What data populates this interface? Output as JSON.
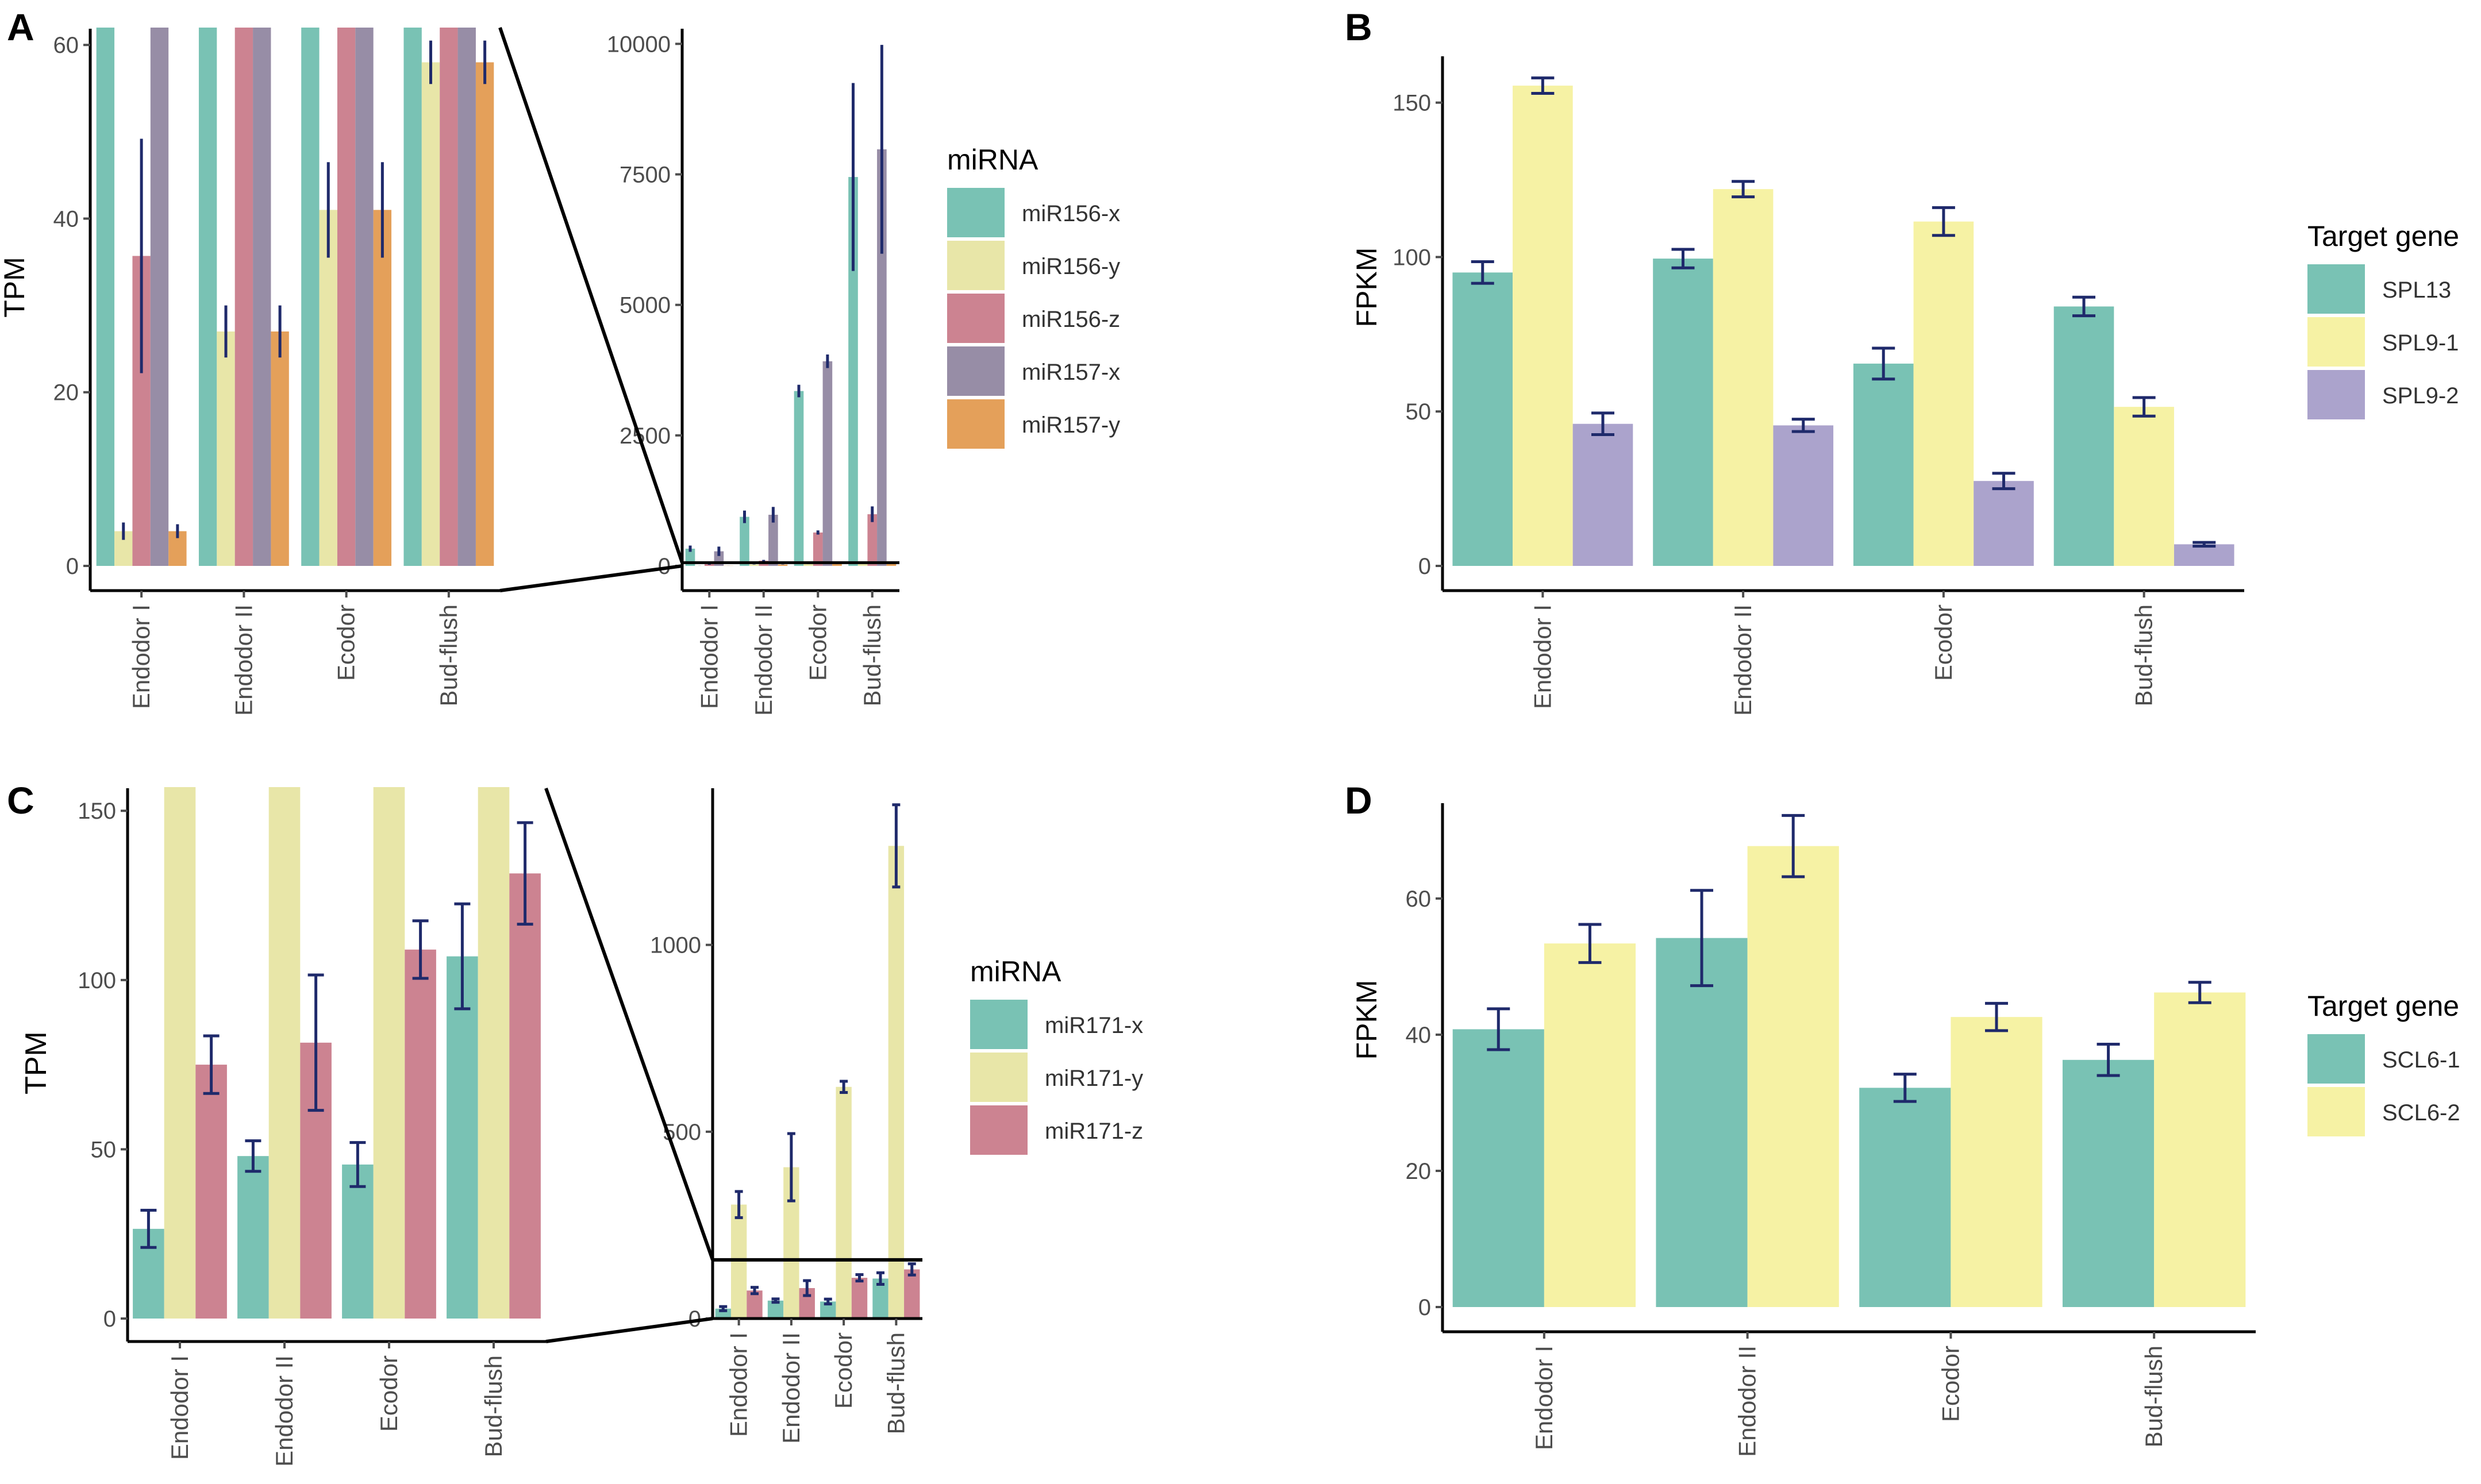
{
  "figure": {
    "panel_labels": [
      "A",
      "B",
      "C",
      "D"
    ],
    "categories": [
      "Endodor I",
      "Endodor II",
      "Ecodor",
      "Bud-flush"
    ]
  },
  "chart_data": [
    {
      "id": "A",
      "type": "bar",
      "title": "",
      "xlabel": "",
      "ylabel": "TPM",
      "legend_title": "miRNA",
      "legend_position": "right",
      "grid": false,
      "categories": [
        "Endodor I",
        "Endodor II",
        "Ecodor",
        "Bud-flush"
      ],
      "series": [
        {
          "name": "miR156-x",
          "color": "#79C2B4",
          "values": [
            330,
            940,
            3350,
            7450
          ],
          "errors": [
            60,
            120,
            120,
            1800
          ]
        },
        {
          "name": "miR156-y",
          "color": "#E8E6A8",
          "values": [
            4,
            27,
            41,
            58
          ],
          "errors": [
            1,
            3,
            5.5,
            2.5
          ]
        },
        {
          "name": "miR156-z",
          "color": "#CC8391",
          "values": [
            35.7,
            100,
            640,
            990
          ],
          "errors": [
            13.5,
            15,
            40,
            150
          ]
        },
        {
          "name": "miR157-x",
          "color": "#978DA6",
          "values": [
            280,
            980,
            3920,
            7980
          ],
          "errors": [
            90,
            150,
            130,
            2000
          ]
        },
        {
          "name": "miR157-y",
          "color": "#E4A05A",
          "values": [
            4,
            27,
            41,
            58
          ],
          "errors": [
            0.8,
            3,
            5.5,
            2.5
          ]
        }
      ],
      "zoom_ylim": [
        0,
        62
      ],
      "zoom_yticks": [
        0,
        20,
        40,
        60
      ],
      "full_ylim": [
        0,
        10400
      ],
      "full_yticks": [
        0,
        2500,
        5000,
        7500,
        10000
      ],
      "highlight_upper": 62
    },
    {
      "id": "B",
      "type": "bar",
      "title": "",
      "xlabel": "",
      "ylabel": "FPKM",
      "legend_title": "Target gene",
      "legend_position": "right",
      "grid": false,
      "categories": [
        "Endodor I",
        "Endodor II",
        "Ecodor",
        "Bud-flush"
      ],
      "series": [
        {
          "name": "SPL13",
          "color": "#79C2B4",
          "values": [
            95,
            99.5,
            65.5,
            84
          ],
          "errors": [
            3.5,
            3,
            5,
            3
          ]
        },
        {
          "name": "SPL9-1",
          "color": "#F6F2A4",
          "values": [
            155.5,
            122,
            111.5,
            51.5
          ],
          "errors": [
            2.5,
            2.5,
            4.5,
            3
          ]
        },
        {
          "name": "SPL9-2",
          "color": "#ABA3CC",
          "values": [
            46,
            45.5,
            27.5,
            7
          ],
          "errors": [
            3.5,
            2,
            2.5,
            0.6
          ]
        }
      ],
      "ylim": [
        0,
        165
      ],
      "yticks": [
        0,
        50,
        100,
        150
      ]
    },
    {
      "id": "C",
      "type": "bar",
      "title": "",
      "xlabel": "",
      "ylabel": "TPM",
      "legend_title": "miRNA",
      "legend_position": "right",
      "grid": false,
      "categories": [
        "Endodor I",
        "Endodor II",
        "Ecodor",
        "Bud-flush"
      ],
      "series": [
        {
          "name": "miR171-x",
          "color": "#79C2B4",
          "values": [
            26.5,
            48,
            45.5,
            107
          ],
          "errors": [
            5.5,
            4.5,
            6.5,
            15.5
          ]
        },
        {
          "name": "miR171-y",
          "color": "#E8E6A8",
          "values": [
            305,
            405,
            620,
            1265
          ],
          "errors": [
            35,
            90,
            15,
            110
          ]
        },
        {
          "name": "miR171-z",
          "color": "#CC8391",
          "values": [
            75,
            81.5,
            109,
            131.5
          ],
          "errors": [
            8.5,
            20,
            8.5,
            15
          ]
        }
      ],
      "zoom_ylim": [
        0,
        157
      ],
      "zoom_yticks": [
        0,
        50,
        100,
        150
      ],
      "full_ylim": [
        0,
        1410
      ],
      "full_yticks": [
        0,
        500,
        1000
      ],
      "highlight_upper": 157
    },
    {
      "id": "D",
      "type": "bar",
      "title": "",
      "xlabel": "",
      "ylabel": "FPKM",
      "legend_title": "Target gene",
      "legend_position": "right",
      "grid": false,
      "categories": [
        "Endodor I",
        "Endodor II",
        "Ecodor",
        "Bud-flush"
      ],
      "series": [
        {
          "name": "SCL6-1",
          "color": "#79C2B4",
          "values": [
            40.8,
            54.2,
            32.2,
            36.3
          ],
          "errors": [
            3,
            7,
            2,
            2.3
          ]
        },
        {
          "name": "SCL6-2",
          "color": "#F6F2A4",
          "values": [
            53.4,
            67.7,
            42.6,
            46.2
          ],
          "errors": [
            2.8,
            4.5,
            2,
            1.5
          ]
        }
      ],
      "ylim": [
        0,
        74
      ],
      "yticks": [
        0,
        20,
        40,
        60
      ]
    }
  ]
}
